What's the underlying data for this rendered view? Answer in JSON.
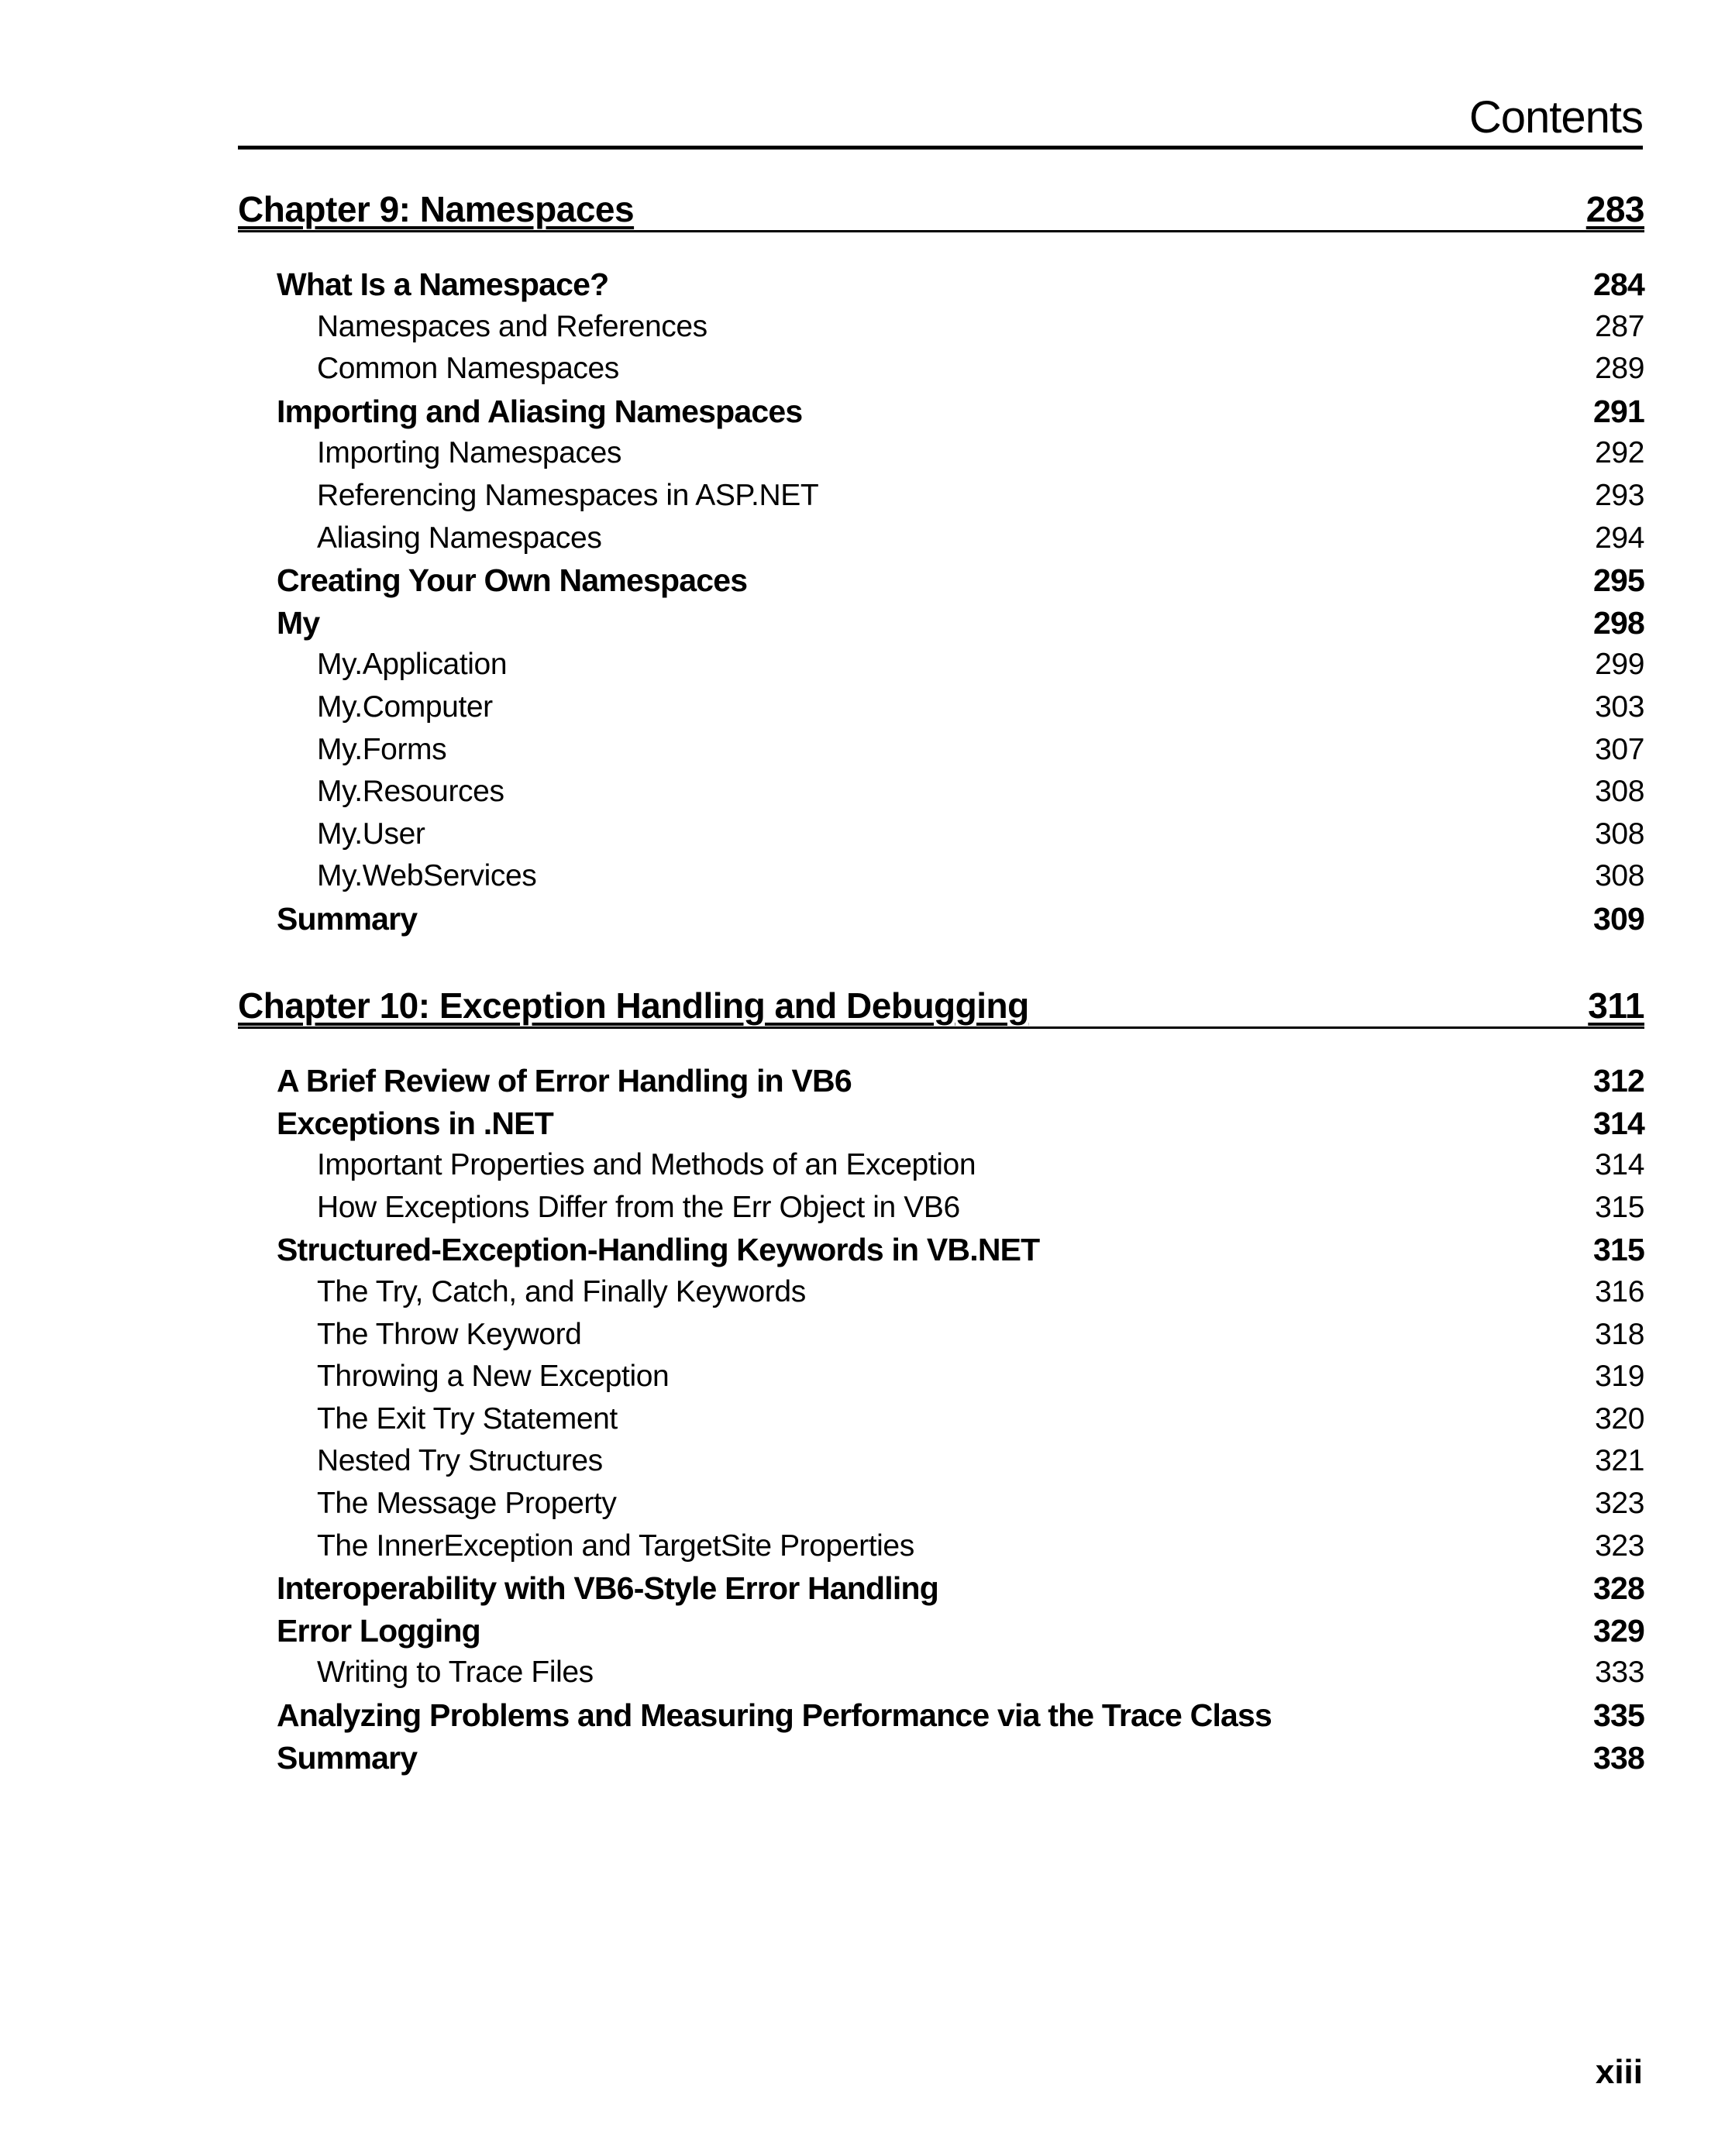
{
  "header": {
    "title": "Contents"
  },
  "chapters": [
    {
      "title": "Chapter 9: Namespaces",
      "page": "283",
      "entries": [
        {
          "level": 1,
          "title": "What Is a Namespace?",
          "page": "284"
        },
        {
          "level": 2,
          "title": "Namespaces and References",
          "page": "287"
        },
        {
          "level": 2,
          "title": "Common Namespaces",
          "page": "289"
        },
        {
          "level": 1,
          "title": "Importing and Aliasing Namespaces",
          "page": "291"
        },
        {
          "level": 2,
          "title": "Importing Namespaces",
          "page": "292"
        },
        {
          "level": 2,
          "title": "Referencing Namespaces in ASP.NET",
          "page": "293"
        },
        {
          "level": 2,
          "title": "Aliasing Namespaces",
          "page": "294"
        },
        {
          "level": 1,
          "title": "Creating Your Own Namespaces",
          "page": "295"
        },
        {
          "level": 1,
          "title": "My",
          "page": "298"
        },
        {
          "level": 2,
          "title": "My.Application",
          "page": "299"
        },
        {
          "level": 2,
          "title": "My.Computer",
          "page": "303"
        },
        {
          "level": 2,
          "title": "My.Forms",
          "page": "307"
        },
        {
          "level": 2,
          "title": "My.Resources",
          "page": "308"
        },
        {
          "level": 2,
          "title": "My.User",
          "page": "308"
        },
        {
          "level": 2,
          "title": "My.WebServices",
          "page": "308"
        },
        {
          "level": 1,
          "title": "Summary",
          "page": "309"
        }
      ]
    },
    {
      "title": "Chapter 10: Exception Handling and Debugging",
      "page": "311",
      "entries": [
        {
          "level": 1,
          "title": "A Brief Review of Error Handling in VB6",
          "page": "312"
        },
        {
          "level": 1,
          "title": "Exceptions in .NET",
          "page": "314"
        },
        {
          "level": 2,
          "title": "Important Properties and Methods of an Exception",
          "page": "314"
        },
        {
          "level": 2,
          "title": "How Exceptions Differ from the Err Object in VB6",
          "page": "315"
        },
        {
          "level": 1,
          "title": "Structured-Exception-Handling Keywords in VB.NET",
          "page": "315"
        },
        {
          "level": 2,
          "title": "The Try, Catch, and Finally Keywords",
          "page": "316"
        },
        {
          "level": 2,
          "title": "The Throw Keyword",
          "page": "318"
        },
        {
          "level": 2,
          "title": "Throwing a New Exception",
          "page": "319"
        },
        {
          "level": 2,
          "title": "The Exit Try Statement",
          "page": "320"
        },
        {
          "level": 2,
          "title": "Nested Try Structures",
          "page": "321"
        },
        {
          "level": 2,
          "title": "The Message Property",
          "page": "323"
        },
        {
          "level": 2,
          "title": "The InnerException and TargetSite Properties",
          "page": "323"
        },
        {
          "level": 1,
          "title": "Interoperability with VB6-Style Error Handling",
          "page": "328"
        },
        {
          "level": 1,
          "title": "Error Logging",
          "page": "329"
        },
        {
          "level": 2,
          "title": "Writing to Trace Files",
          "page": "333"
        },
        {
          "level": 1,
          "title": "Analyzing Problems and Measuring Performance via the Trace Class",
          "page": "335"
        },
        {
          "level": 1,
          "title": "Summary",
          "page": "338"
        }
      ]
    }
  ],
  "footer": {
    "page_number": "xiii"
  }
}
